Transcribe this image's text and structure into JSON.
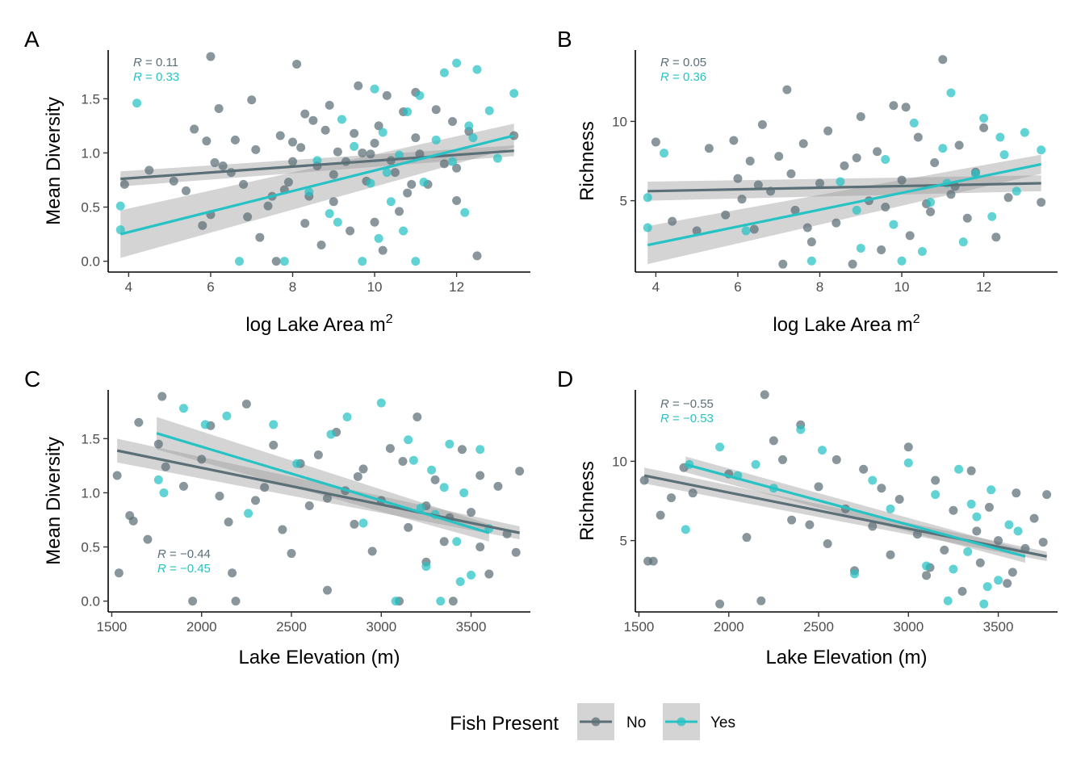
{
  "legend": {
    "title": "Fish Present",
    "items": [
      {
        "label": "No",
        "color": "#5b6f77"
      },
      {
        "label": "Yes",
        "color": "#26c2c4"
      }
    ]
  },
  "chart_data": [
    {
      "type": "scatter",
      "panel": "A",
      "xlabel": "log Lake Area m",
      "xlabel_superscript": "2",
      "ylabel": "Mean Diversity",
      "xlim": [
        3.5,
        13.8
      ],
      "ylim": [
        -0.1,
        1.95
      ],
      "xticks": [
        4,
        6,
        8,
        10,
        12
      ],
      "xtick_labels": [
        "4",
        "6",
        "8",
        "10",
        "12"
      ],
      "yticks": [
        0,
        0.5,
        1,
        1.5
      ],
      "ytick_labels": [
        "0.0",
        "0.5",
        "1.0",
        "1.5"
      ],
      "correlations": [
        {
          "series": "No",
          "prefix": "R",
          "text": " = 0.11"
        },
        {
          "series": "Yes",
          "prefix": "R",
          "text": " = 0.33"
        }
      ],
      "fits": [
        {
          "series": "No",
          "x": [
            3.8,
            13.4
          ],
          "y": [
            0.76,
            1.02
          ],
          "ci_low": [
            0.69,
            0.97
          ],
          "ci_high": [
            0.83,
            1.07
          ]
        },
        {
          "series": "Yes",
          "x": [
            3.8,
            13.4
          ],
          "y": [
            0.25,
            1.16
          ],
          "ci_low": [
            0.03,
            1.05
          ],
          "ci_high": [
            0.47,
            1.27
          ]
        }
      ],
      "series": [
        {
          "name": "No",
          "x": [
            3.9,
            4.5,
            5.1,
            5.4,
            5.6,
            5.9,
            6.0,
            6.1,
            6.2,
            6.3,
            6.5,
            6.8,
            6.9,
            7.1,
            7.2,
            7.4,
            7.6,
            7.7,
            7.9,
            8.0,
            8.1,
            8.2,
            8.3,
            8.4,
            8.5,
            8.6,
            8.7,
            8.9,
            9.0,
            9.1,
            9.3,
            9.4,
            9.5,
            9.6,
            9.8,
            9.9,
            10.0,
            10.1,
            10.2,
            10.3,
            10.5,
            10.6,
            10.7,
            10.8,
            11.0,
            11.1,
            11.3,
            11.5,
            11.7,
            12.0,
            12.3,
            12.5,
            13.4,
            6.6,
            7.8,
            8.8,
            10.4,
            11.9,
            6.0,
            7.0,
            8.0,
            9.0,
            10.0,
            11.0,
            12.0,
            7.5,
            9.7,
            10.9,
            5.8,
            8.3
          ],
          "y": [
            0.71,
            0.84,
            0.74,
            0.65,
            1.22,
            1.11,
            1.89,
            0.91,
            1.41,
            0.88,
            0.82,
            0.71,
            0.41,
            1.03,
            0.22,
            0.51,
            0.0,
            1.16,
            0.73,
            0.92,
            1.82,
            1.05,
            0.35,
            0.6,
            1.3,
            0.88,
            0.15,
            1.44,
            0.55,
            1.01,
            0.92,
            0.28,
            1.18,
            1.62,
            0.74,
            0.99,
            1.09,
            1.25,
            0.1,
            1.53,
            0.82,
            0.46,
            1.38,
            0.63,
            1.14,
            0.99,
            0.71,
            1.4,
            0.9,
            0.56,
            1.2,
            0.05,
            1.16,
            1.12,
            0.66,
            1.21,
            0.93,
            1.29,
            0.43,
            1.49,
            1.1,
            0.8,
            0.36,
            1.56,
            0.86,
            0.6,
            1.0,
            0.71,
            0.33,
            1.36
          ]
        },
        {
          "name": "Yes",
          "x": [
            3.8,
            3.8,
            4.2,
            6.7,
            7.8,
            8.6,
            8.9,
            9.2,
            9.5,
            9.7,
            9.9,
            10.0,
            10.1,
            10.2,
            10.4,
            10.6,
            10.8,
            11.0,
            11.2,
            11.5,
            11.7,
            11.9,
            12.0,
            12.2,
            12.4,
            12.5,
            12.8,
            13.0,
            13.4,
            9.1,
            10.3,
            11.1,
            12.3,
            8.4,
            10.7
          ],
          "y": [
            0.51,
            0.29,
            1.46,
            0.0,
            0.0,
            0.93,
            0.44,
            1.31,
            1.06,
            0.0,
            0.72,
            1.59,
            0.21,
            1.19,
            0.55,
            0.98,
            1.38,
            0.0,
            0.73,
            1.12,
            1.74,
            0.92,
            1.83,
            0.45,
            1.14,
            1.77,
            1.39,
            0.95,
            1.55,
            0.36,
            0.82,
            1.53,
            1.25,
            0.64,
            0.28
          ]
        }
      ]
    },
    {
      "type": "scatter",
      "panel": "B",
      "xlabel": "log Lake Area m",
      "xlabel_superscript": "2",
      "ylabel": "Richness",
      "xlim": [
        3.5,
        13.8
      ],
      "ylim": [
        0.5,
        14.5
      ],
      "xticks": [
        4,
        6,
        8,
        10,
        12
      ],
      "xtick_labels": [
        "4",
        "6",
        "8",
        "10",
        "12"
      ],
      "yticks": [
        5,
        10
      ],
      "ytick_labels": [
        "5",
        "10"
      ],
      "correlations": [
        {
          "series": "No",
          "prefix": "R",
          "text": " = 0.05"
        },
        {
          "series": "Yes",
          "prefix": "R",
          "text": " = 0.36"
        }
      ],
      "fits": [
        {
          "series": "No",
          "x": [
            3.8,
            13.4
          ],
          "y": [
            5.6,
            6.1
          ],
          "ci_low": [
            5.0,
            5.6
          ],
          "ci_high": [
            6.2,
            6.6
          ]
        },
        {
          "series": "Yes",
          "x": [
            3.8,
            13.4
          ],
          "y": [
            2.2,
            7.3
          ],
          "ci_low": [
            1.0,
            6.7
          ],
          "ci_high": [
            3.4,
            7.9
          ]
        }
      ],
      "series": [
        {
          "name": "No",
          "x": [
            4.0,
            4.4,
            5.0,
            5.3,
            5.7,
            5.9,
            6.0,
            6.1,
            6.3,
            6.4,
            6.6,
            6.8,
            7.0,
            7.1,
            7.2,
            7.4,
            7.6,
            7.8,
            8.0,
            8.2,
            8.4,
            8.6,
            8.8,
            9.0,
            9.2,
            9.4,
            9.6,
            9.8,
            10.0,
            10.2,
            10.4,
            10.6,
            10.8,
            11.0,
            11.2,
            11.4,
            11.6,
            11.8,
            12.0,
            12.3,
            12.6,
            13.4,
            6.5,
            7.7,
            8.9,
            10.1,
            11.3,
            9.5,
            7.3,
            10.7
          ],
          "y": [
            8.7,
            3.7,
            3.1,
            8.3,
            4.1,
            8.8,
            6.4,
            5.1,
            7.5,
            3.2,
            9.8,
            5.6,
            7.8,
            1.0,
            12.0,
            4.4,
            8.6,
            2.4,
            6.1,
            9.4,
            3.6,
            7.2,
            1.0,
            10.3,
            5.0,
            8.1,
            4.6,
            11.0,
            6.3,
            2.8,
            9.0,
            4.8,
            7.4,
            13.9,
            5.4,
            8.5,
            3.9,
            6.8,
            9.6,
            2.7,
            5.2,
            4.9,
            6.0,
            3.3,
            7.7,
            10.9,
            5.9,
            1.9,
            6.7,
            4.3
          ]
        },
        {
          "name": "Yes",
          "x": [
            3.8,
            3.8,
            4.2,
            6.2,
            7.8,
            8.5,
            9.0,
            9.6,
            10.0,
            10.3,
            10.7,
            11.0,
            11.2,
            11.5,
            11.8,
            12.0,
            12.2,
            12.5,
            12.8,
            13.0,
            13.4,
            9.8,
            11.1,
            12.4,
            8.9,
            10.5
          ],
          "y": [
            5.2,
            3.3,
            8.0,
            3.1,
            1.2,
            6.2,
            2.0,
            7.6,
            1.2,
            9.9,
            4.9,
            8.3,
            11.8,
            2.4,
            6.7,
            10.2,
            4.0,
            7.9,
            5.6,
            9.3,
            8.2,
            3.5,
            6.1,
            9.0,
            4.4,
            1.8
          ]
        }
      ]
    },
    {
      "type": "scatter",
      "panel": "C",
      "xlabel": "Lake Elevation (m)",
      "ylabel": "Mean Diversity",
      "xlim": [
        1480,
        3830
      ],
      "ylim": [
        -0.1,
        1.95
      ],
      "xticks": [
        1500,
        2000,
        2500,
        3000,
        3500
      ],
      "xtick_labels": [
        "1500",
        "2000",
        "2500",
        "3000",
        "3500"
      ],
      "yticks": [
        0,
        0.5,
        1,
        1.5
      ],
      "ytick_labels": [
        "0.0",
        "0.5",
        "1.0",
        "1.5"
      ],
      "correlations": [
        {
          "series": "No",
          "prefix": "R",
          "text": " = −0.44"
        },
        {
          "series": "Yes",
          "prefix": "R",
          "text": " = −0.45"
        }
      ],
      "fits": [
        {
          "series": "No",
          "x": [
            1530,
            3770
          ],
          "y": [
            1.39,
            0.63
          ],
          "ci_low": [
            1.28,
            0.57
          ],
          "ci_high": [
            1.5,
            0.69
          ]
        },
        {
          "series": "Yes",
          "x": [
            1750,
            3600
          ],
          "y": [
            1.55,
            0.63
          ],
          "ci_low": [
            1.4,
            0.55
          ],
          "ci_high": [
            1.7,
            0.71
          ]
        }
      ],
      "series": [
        {
          "name": "No",
          "x": [
            1530,
            1540,
            1600,
            1620,
            1650,
            1700,
            1760,
            1780,
            1800,
            1900,
            1950,
            2000,
            2050,
            2100,
            2150,
            2170,
            2190,
            2250,
            2300,
            2350,
            2400,
            2450,
            2500,
            2550,
            2600,
            2650,
            2700,
            2750,
            2800,
            2850,
            2900,
            2950,
            3000,
            3050,
            3100,
            3150,
            3200,
            3250,
            3300,
            3350,
            3400,
            3450,
            3500,
            3550,
            3600,
            3650,
            3700,
            3750,
            3770,
            2700,
            3120,
            3380,
            3550,
            2870,
            3250
          ],
          "y": [
            1.16,
            0.26,
            0.79,
            0.74,
            1.65,
            0.57,
            1.45,
            1.89,
            1.24,
            1.06,
            0.0,
            1.31,
            1.62,
            0.97,
            0.73,
            0.26,
            0.0,
            1.82,
            0.93,
            1.05,
            1.44,
            0.66,
            0.44,
            1.27,
            0.88,
            1.35,
            0.1,
            1.56,
            1.02,
            0.71,
            1.22,
            0.46,
            0.93,
            1.41,
            0.0,
            0.68,
            1.7,
            0.36,
            1.12,
            0.55,
            0.0,
            1.4,
            0.82,
            1.16,
            0.25,
            1.06,
            0.62,
            0.45,
            1.2,
            0.95,
            1.29,
            0.77,
            0.5,
            1.15,
            0.88
          ]
        },
        {
          "name": "Yes",
          "x": [
            1760,
            1790,
            1900,
            2020,
            2140,
            2260,
            2400,
            2530,
            2720,
            2810,
            2900,
            3000,
            3080,
            3150,
            3220,
            3280,
            3330,
            3380,
            3420,
            3460,
            3500,
            3550,
            3600,
            3250,
            3350,
            3440,
            3300,
            3180
          ],
          "y": [
            1.12,
            1.0,
            1.78,
            1.63,
            1.71,
            0.81,
            1.63,
            1.27,
            1.54,
            1.7,
            0.72,
            1.83,
            0.0,
            1.49,
            0.86,
            1.21,
            0.0,
            1.45,
            0.55,
            1.0,
            0.24,
            1.4,
            0.67,
            0.32,
            1.05,
            0.18,
            0.8,
            1.3
          ]
        }
      ]
    },
    {
      "type": "scatter",
      "panel": "D",
      "xlabel": "Lake Elevation (m)",
      "ylabel": "Richness",
      "xlim": [
        1480,
        3830
      ],
      "ylim": [
        0.5,
        14.5
      ],
      "xticks": [
        1500,
        2000,
        2500,
        3000,
        3500
      ],
      "xtick_labels": [
        "1500",
        "2000",
        "2500",
        "3000",
        "3500"
      ],
      "yticks": [
        5,
        10
      ],
      "ytick_labels": [
        "5",
        "10"
      ],
      "correlations": [
        {
          "series": "No",
          "prefix": "R",
          "text": " = −0.55"
        },
        {
          "series": "Yes",
          "prefix": "R",
          "text": " = −0.53"
        }
      ],
      "fits": [
        {
          "series": "No",
          "x": [
            1530,
            3770
          ],
          "y": [
            9.1,
            4.0
          ],
          "ci_low": [
            8.6,
            3.7
          ],
          "ci_high": [
            9.6,
            4.3
          ]
        },
        {
          "series": "Yes",
          "x": [
            1760,
            3650
          ],
          "y": [
            9.8,
            4.0
          ],
          "ci_low": [
            9.3,
            3.6
          ],
          "ci_high": [
            10.3,
            4.4
          ]
        }
      ],
      "series": [
        {
          "name": "No",
          "x": [
            1530,
            1550,
            1580,
            1620,
            1680,
            1750,
            1800,
            1950,
            2000,
            2100,
            2180,
            2200,
            2250,
            2300,
            2350,
            2400,
            2500,
            2550,
            2600,
            2650,
            2700,
            2750,
            2800,
            2850,
            2900,
            2950,
            3000,
            3050,
            3100,
            3150,
            3200,
            3250,
            3300,
            3350,
            3400,
            3450,
            3500,
            3550,
            3600,
            3650,
            3700,
            3750,
            3770,
            2450,
            3120,
            3380,
            3580
          ],
          "y": [
            8.8,
            3.7,
            3.7,
            6.6,
            7.7,
            9.6,
            8.0,
            1.0,
            9.2,
            5.2,
            1.2,
            14.2,
            11.3,
            10.1,
            6.3,
            12.3,
            8.4,
            4.8,
            10.1,
            7.0,
            3.1,
            9.5,
            5.9,
            8.3,
            4.1,
            7.6,
            10.9,
            5.4,
            2.8,
            8.8,
            4.4,
            6.9,
            1.8,
            9.4,
            3.6,
            7.1,
            5.0,
            2.3,
            8.0,
            4.5,
            6.4,
            4.9,
            7.9,
            6.0,
            3.3,
            5.6,
            3.0
          ]
        },
        {
          "name": "Yes",
          "x": [
            1760,
            1780,
            1950,
            2050,
            2150,
            2250,
            2400,
            2520,
            2700,
            2800,
            2900,
            3000,
            3100,
            3150,
            3220,
            3280,
            3330,
            3380,
            3420,
            3460,
            3500,
            3560,
            3610,
            3250,
            3350,
            3440
          ],
          "y": [
            5.7,
            9.8,
            10.9,
            9.1,
            9.8,
            8.3,
            12.0,
            10.7,
            2.9,
            8.8,
            7.0,
            9.9,
            3.4,
            7.9,
            1.2,
            9.5,
            4.3,
            6.5,
            1.0,
            8.2,
            2.5,
            6.0,
            5.6,
            3.2,
            7.3,
            2.1
          ]
        }
      ]
    }
  ]
}
